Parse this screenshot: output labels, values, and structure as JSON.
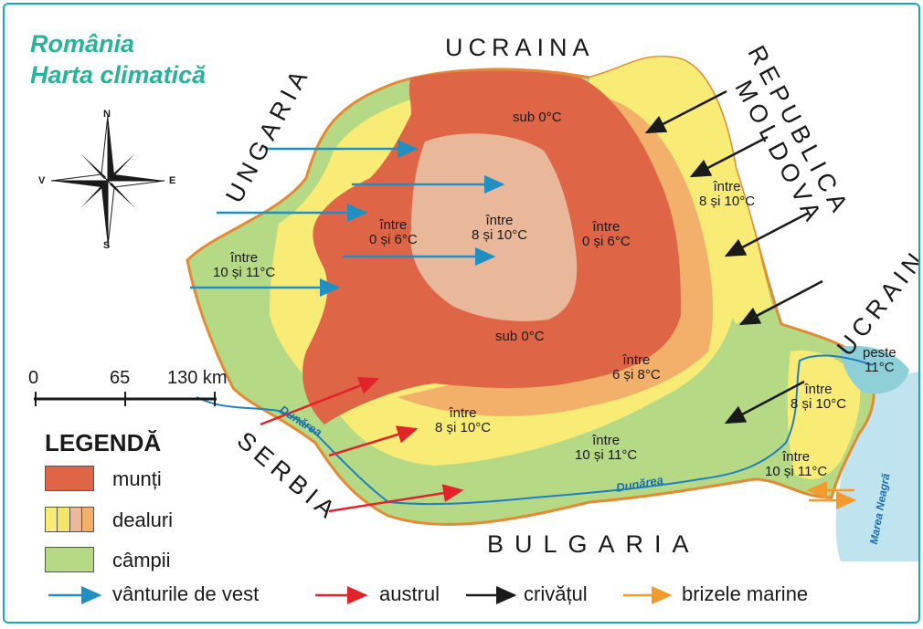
{
  "title": {
    "line1": "România",
    "line2": "Harta climatică"
  },
  "countries": {
    "ukraine_north": "UCRAINA",
    "hungary": "UNGARIA",
    "moldova_line1": "REPUBLICA",
    "moldova_line2": "MOLDOVA",
    "ukraine_east": "UCRAINA",
    "serbia": "SERBIA",
    "bulgaria": "BULGARIA",
    "black_sea": "Marea Neagră"
  },
  "rivers": {
    "danube_west": "Dunărea",
    "danube_south": "Dunărea"
  },
  "compass": {
    "n": "N",
    "s": "S",
    "e": "E",
    "w": "V"
  },
  "scale": {
    "ticks": [
      "0",
      "65",
      "130 km"
    ]
  },
  "zones": [
    {
      "id": "sub0-north",
      "line1": "sub 0°C",
      "line2": ""
    },
    {
      "id": "west-mountains",
      "line1": "între",
      "line2": "0 și 6°C"
    },
    {
      "id": "center-plateau",
      "line1": "între",
      "line2": "8 și 10°C"
    },
    {
      "id": "east-mountains",
      "line1": "între",
      "line2": "0 și 6°C"
    },
    {
      "id": "moldova-plateau",
      "line1": "între",
      "line2": "8 și 10°C"
    },
    {
      "id": "west-plain",
      "line1": "între",
      "line2": "10 și 11°C"
    },
    {
      "id": "sub0-south",
      "line1": "sub 0°C",
      "line2": ""
    },
    {
      "id": "subcarpathians",
      "line1": "între",
      "line2": "6 și 8°C"
    },
    {
      "id": "south-hills",
      "line1": "între",
      "line2": "8 și 10°C"
    },
    {
      "id": "south-plain",
      "line1": "între",
      "line2": "10 și 11°C"
    },
    {
      "id": "dobrogea-hills",
      "line1": "între",
      "line2": "8 și 10°C"
    },
    {
      "id": "coast",
      "line1": "între",
      "line2": "10 și 11°C"
    },
    {
      "id": "delta",
      "line1": "peste",
      "line2": "11°C"
    }
  ],
  "legend": {
    "title": "LEGENDĂ",
    "items": [
      {
        "label": "munți",
        "colors": [
          "#df6547"
        ]
      },
      {
        "label": "dealuri",
        "colors": [
          "#f8ec76",
          "#f2e56a",
          "#e9b79a",
          "#f3b06a"
        ]
      },
      {
        "label": "câmpii",
        "colors": [
          "#b5d985"
        ]
      }
    ],
    "winds": [
      {
        "label": "vânturile de vest",
        "color": "#1f8fc4"
      },
      {
        "label": "austrul",
        "color": "#e3232a"
      },
      {
        "label": "crivățul",
        "color": "#1a1a1a"
      },
      {
        "label": "brizele marine",
        "color": "#f29a2e"
      }
    ]
  },
  "colors": {
    "mountains": "#df6547",
    "hills_yellow": "#f8ec76",
    "plateau_pink": "#e9b79a",
    "subcarpathian_orange": "#f3b06a",
    "plains_green": "#b5d985",
    "sea": "#bfe3ef",
    "border": "#e38a34",
    "title": "#27b39a"
  }
}
